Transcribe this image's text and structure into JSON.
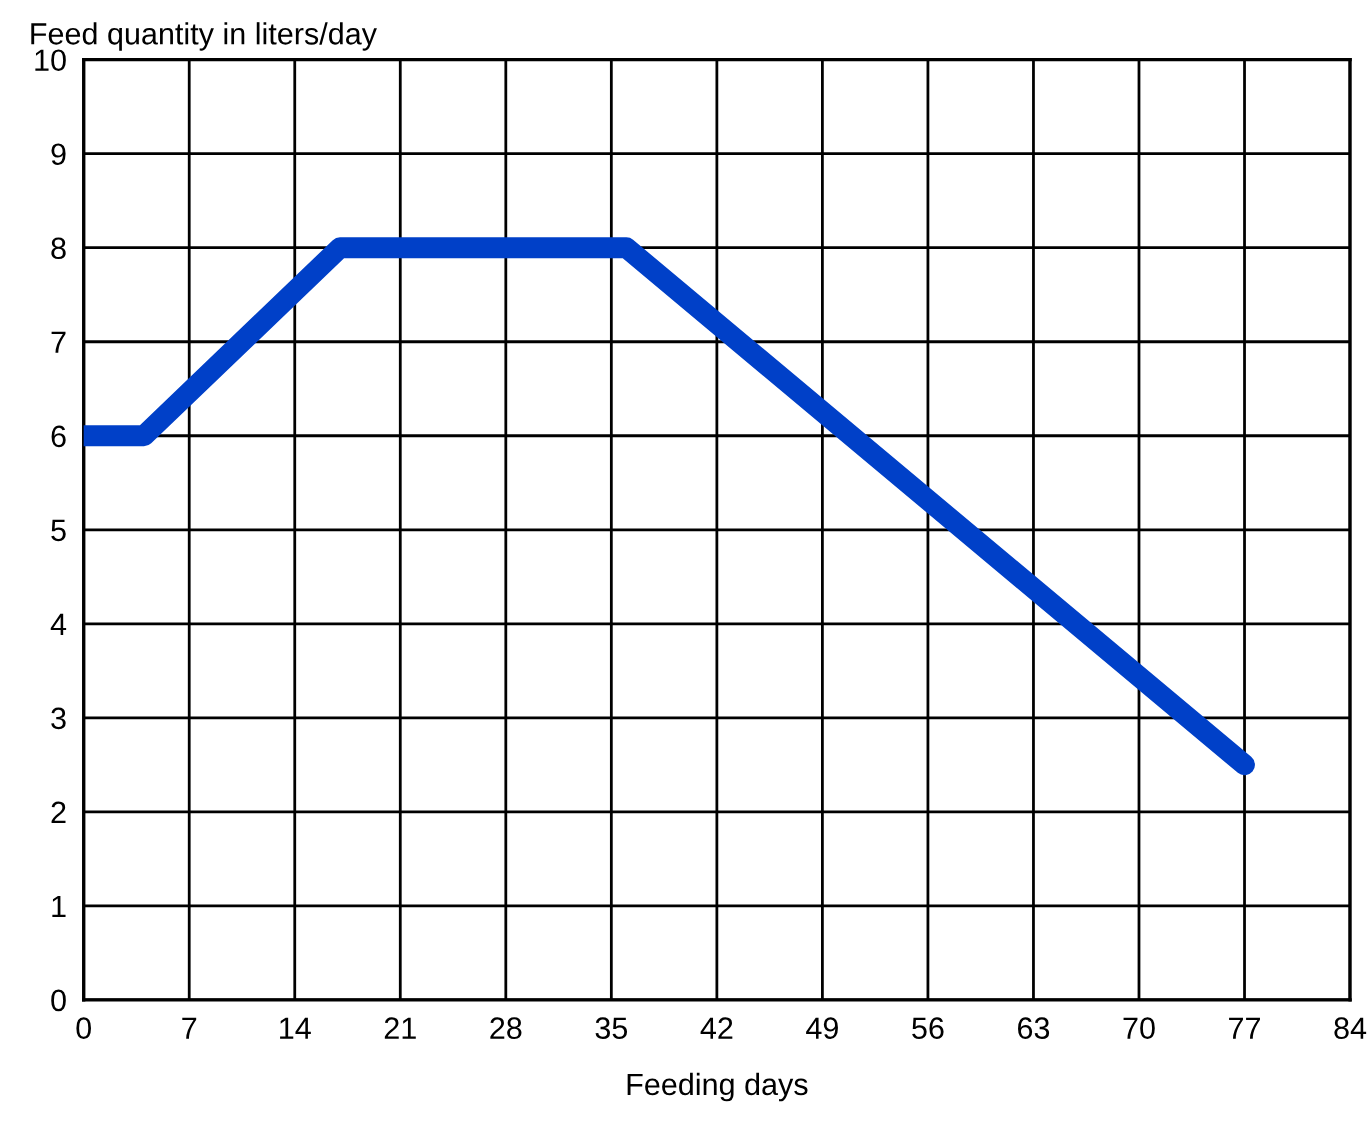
{
  "chart_data": {
    "type": "line",
    "xlabel": "Feeding days",
    "ylabel": "Feed quantity in liters/day",
    "x": [
      0,
      4,
      17,
      36,
      77
    ],
    "series": [
      {
        "color": "#0040c8",
        "values": [
          6,
          6,
          8,
          8,
          2.5
        ]
      }
    ],
    "xlim": [
      0,
      84
    ],
    "xticks": [
      0,
      7,
      14,
      21,
      28,
      35,
      42,
      49,
      56,
      63,
      70,
      77,
      84
    ],
    "ylim": [
      0,
      10
    ],
    "yticks": [
      0,
      1,
      2,
      3,
      4,
      5,
      6,
      7,
      8,
      9,
      10
    ],
    "grid": true,
    "marker": "none",
    "line_style": "solid"
  }
}
